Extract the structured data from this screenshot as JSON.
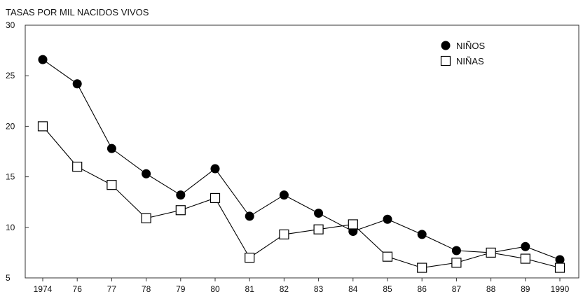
{
  "chart_data": {
    "type": "line",
    "title": "TASAS POR MIL NACIDOS VIVOS",
    "xlabel": "",
    "ylabel": "",
    "categories": [
      "1974",
      "76",
      "77",
      "78",
      "79",
      "80",
      "81",
      "82",
      "83",
      "84",
      "85",
      "86",
      "87",
      "88",
      "89",
      "1990"
    ],
    "ylim": [
      5,
      30
    ],
    "yticks": [
      5,
      10,
      15,
      20,
      25,
      30
    ],
    "grid": false,
    "legend_position": "top-right",
    "series": [
      {
        "name": "NIÑOS",
        "marker": "filled-circle",
        "color": "#000000",
        "values": [
          26.6,
          24.2,
          17.8,
          15.3,
          13.2,
          15.8,
          11.1,
          13.2,
          11.4,
          9.6,
          10.8,
          9.3,
          7.7,
          7.5,
          8.1,
          6.8
        ]
      },
      {
        "name": "NIÑAS",
        "marker": "open-square",
        "color": "#000000",
        "values": [
          20.0,
          16.0,
          14.2,
          10.9,
          11.7,
          12.9,
          7.0,
          9.3,
          9.8,
          10.3,
          7.1,
          6.0,
          6.5,
          7.5,
          6.9,
          6.0
        ]
      }
    ]
  }
}
